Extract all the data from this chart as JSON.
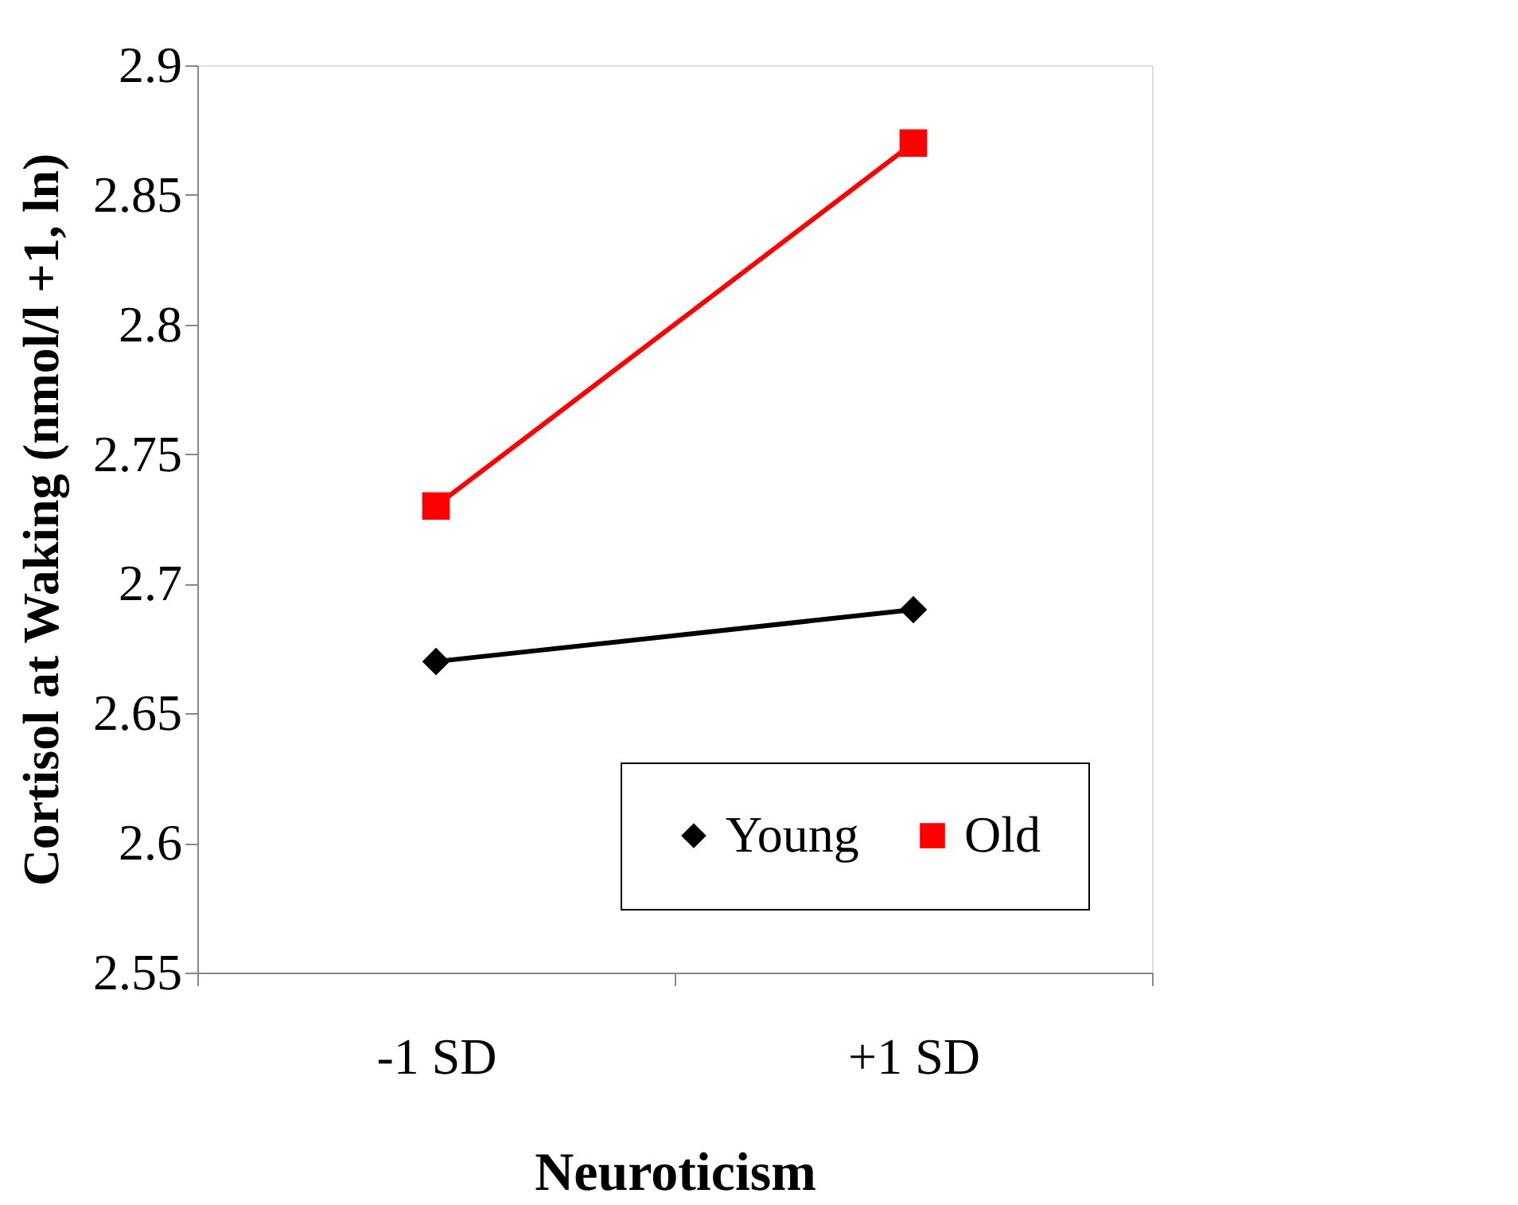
{
  "chart_data": {
    "type": "line",
    "xlabel": "Neuroticism",
    "ylabel": "Cortisol at Waking (nmol/l +1, ln)",
    "categories": [
      "-1 SD",
      "+1 SD"
    ],
    "series": [
      {
        "name": "Young",
        "color": "#000000",
        "values": [
          2.67,
          2.69
        ],
        "marker": "diamond"
      },
      {
        "name": "Old",
        "color": "#ff0000",
        "values": [
          2.73,
          2.87
        ],
        "marker": "square"
      }
    ],
    "ylim": [
      2.55,
      2.9
    ],
    "yticks": [
      2.55,
      {
        "value": 2.6,
        "label": "2.6"
      },
      2.65,
      {
        "value": 2.7,
        "label": "2.7"
      },
      2.75,
      {
        "value": 2.8,
        "label": "2.8"
      },
      2.85,
      {
        "value": 2.9,
        "label": "2.9"
      }
    ],
    "grid": false,
    "legend": "bottom right",
    "line_style": "solid"
  }
}
